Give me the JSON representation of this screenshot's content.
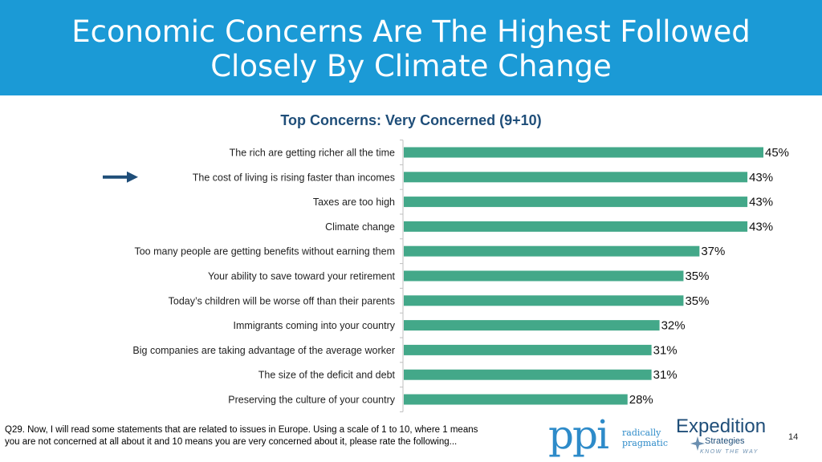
{
  "header": {
    "title_line1": "Economic Concerns Are The Highest Followed",
    "title_line2": "Closely By Climate Change"
  },
  "chart_data": {
    "type": "bar",
    "orientation": "horizontal",
    "title": "Top Concerns: Very Concerned (9+10)",
    "categories": [
      "The rich are getting richer all the time",
      "The cost of living is rising faster than incomes",
      "Taxes are too high",
      "Climate change",
      "Too many people are getting benefits without earning them",
      "Your ability to save toward your retirement",
      "Today’s children will be worse off than their parents",
      "Immigrants coming into your country",
      "Big companies are taking advantage of the average worker",
      "The size of the deficit and debt",
      "Preserving the culture of your country"
    ],
    "values": [
      45,
      43,
      43,
      43,
      37,
      35,
      35,
      32,
      31,
      31,
      28
    ],
    "value_labels": [
      "45%",
      "43%",
      "43%",
      "43%",
      "37%",
      "35%",
      "35%",
      "32%",
      "31%",
      "31%",
      "28%"
    ],
    "xlim": [
      0,
      45
    ],
    "bar_color": "#43a889",
    "highlighted_category_index": 1,
    "grid": false,
    "legend": "none"
  },
  "arrow": {
    "icon": "right-arrow-icon",
    "color": "#1f4e79"
  },
  "footnote": "Q29. Now, I will read some statements that are related to issues in Europe.  Using a scale of 1 to 10, where 1 means you are not concerned at all about it and 10 means you are very concerned about it, please rate the following...",
  "logos": {
    "ppi": {
      "mark": "ppi",
      "tagline_line1": "radically",
      "tagline_line2": "pragmatic",
      "color": "#2e8bc9"
    },
    "expedition": {
      "name": "Expedition",
      "sub": "Strategies",
      "tagline": "KNOW THE WAY",
      "color": "#1f4e79"
    }
  },
  "page_number": "14",
  "colors": {
    "header_bg": "#1b9ad6",
    "chart_title": "#1f4e79"
  }
}
